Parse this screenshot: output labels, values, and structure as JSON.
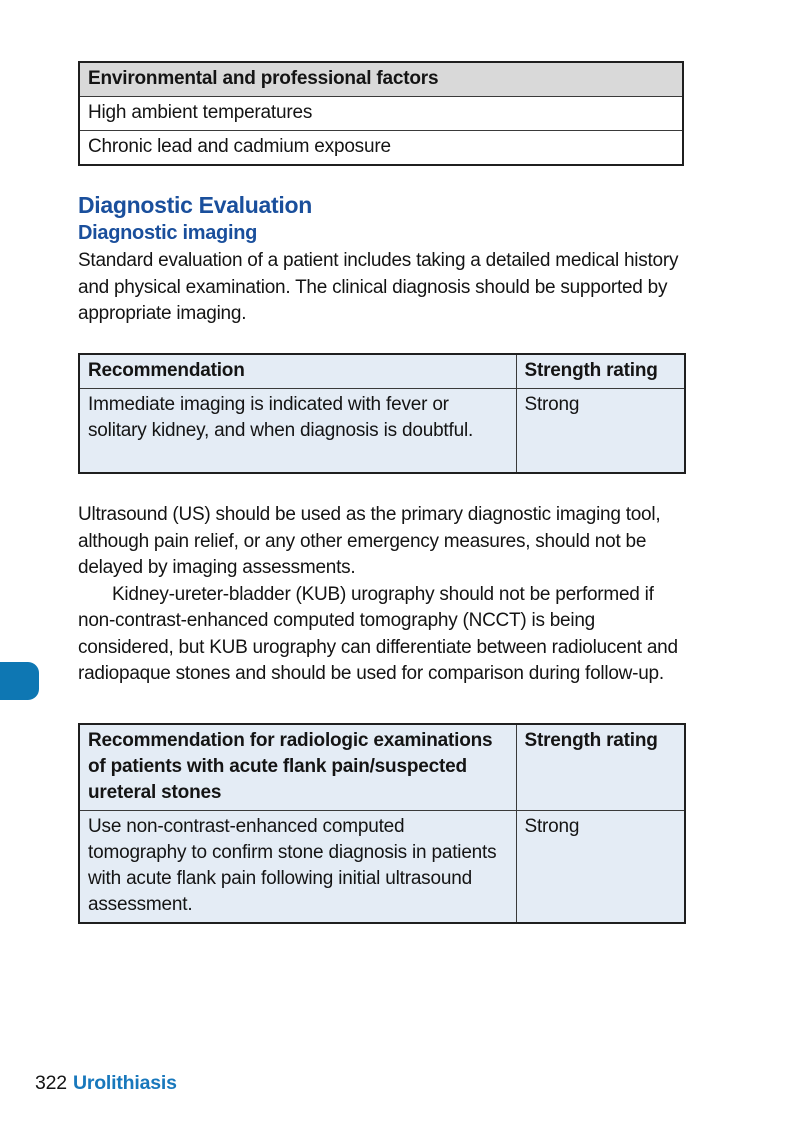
{
  "risk_table": {
    "header": "Environmental and professional factors",
    "rows": [
      "High ambient temperatures",
      "Chronic lead and cadmium exposure"
    ]
  },
  "section": {
    "title": "Diagnostic Evaluation",
    "subtitle": "Diagnostic imaging",
    "paragraphs": {
      "intro": "Standard evaluation of a patient includes taking a detailed medical history and physical examination. The clinical diagnosis should be supported by appropriate imaging.",
      "ultrasound": "Ultrasound (US) should be used as the primary diagnostic imaging tool, although pain relief, or any other emergency measures, should not be delayed by imaging assessments.",
      "kub": "Kidney-ureter-bladder (KUB) urography should not be performed if non-contrast-enhanced computed tomography (NCCT) is being considered, but KUB urography can differentiate between radiolucent and radiopaque stones and should be used for comparison during follow-up."
    }
  },
  "recommendation_table_1": {
    "columns": [
      "Recommendation",
      "Strength rating"
    ],
    "rows": [
      {
        "recommendation": "Immediate imaging is indicated with fever or solitary kidney, and when diagnosis is doubtful.",
        "strength": "Strong"
      }
    ]
  },
  "recommendation_table_2": {
    "columns": [
      "Recommendation for radiologic examinations of patients with acute flank pain/suspected ureteral stones",
      "Strength rating"
    ],
    "rows": [
      {
        "recommendation": "Use non-contrast-enhanced computed tomography to confirm stone diagnosis in patients with acute flank pain following initial ultrasound assessment.",
        "strength": "Strong"
      }
    ]
  },
  "footer": {
    "page_number": "322",
    "book_title": "Urolithiasis"
  },
  "colors": {
    "heading_blue": "#1a4f9c",
    "footer_blue": "#1878bc",
    "thumb_tab_blue": "#0e77b3",
    "table_header_gray": "#d9d9d9",
    "table_blue_background": "#e4ecf5"
  }
}
